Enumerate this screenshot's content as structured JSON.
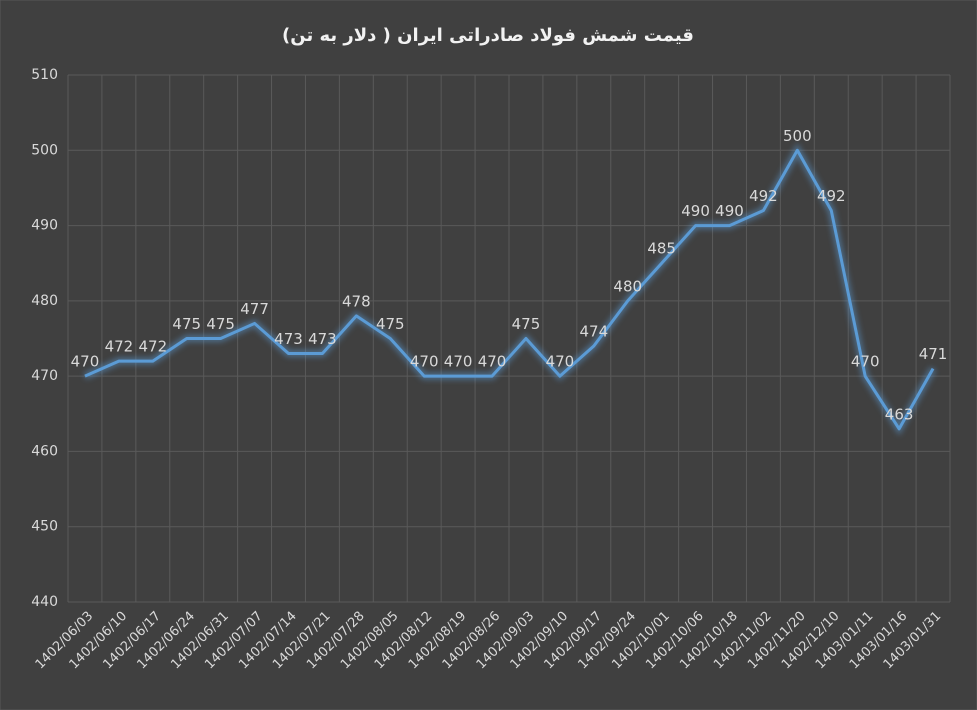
{
  "chart_data": {
    "type": "line",
    "title": "قیمت شمش فولاد صادراتی ایران ( دلار به تن)",
    "categories": [
      "1402/06/03",
      "1402/06/10",
      "1402/06/17",
      "1402/06/24",
      "1402/06/31",
      "1402/07/07",
      "1402/07/14",
      "1402/07/21",
      "1402/07/28",
      "1402/08/05",
      "1402/08/12",
      "1402/08/19",
      "1402/08/26",
      "1402/09/03",
      "1402/09/10",
      "1402/09/17",
      "1402/09/24",
      "1402/10/01",
      "1402/10/06",
      "1402/10/18",
      "1402/11/02",
      "1402/11/20",
      "1402/12/10",
      "1403/01/11",
      "1403/01/16",
      "1403/01/31"
    ],
    "values": [
      470,
      472,
      472,
      475,
      475,
      477,
      473,
      473,
      478,
      475,
      470,
      470,
      470,
      475,
      470,
      474,
      480,
      485,
      490,
      490,
      492,
      500,
      492,
      470,
      463,
      471
    ],
    "color": "#5b9bd5",
    "ylim": [
      440,
      510
    ],
    "yticks": [
      440,
      450,
      460,
      470,
      480,
      490,
      500,
      510
    ],
    "grid": true
  }
}
